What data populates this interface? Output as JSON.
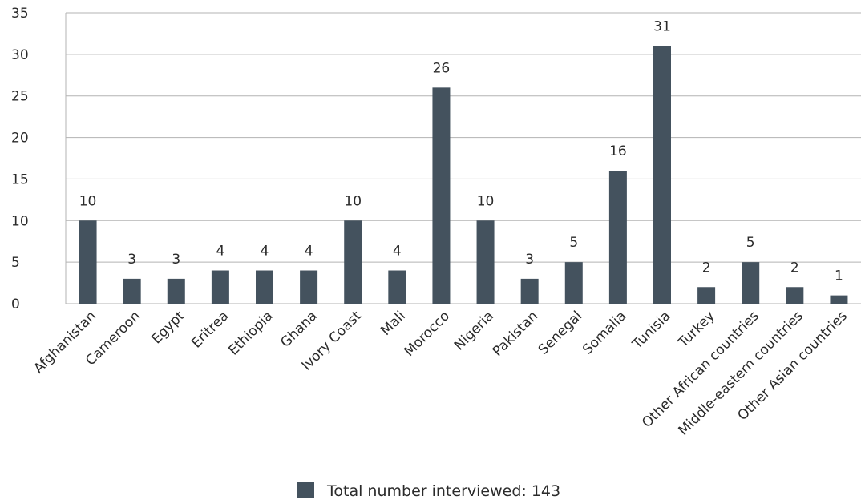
{
  "chart_data": {
    "type": "bar",
    "title": "",
    "xlabel": "",
    "ylabel": "",
    "categories": [
      "Afghanistan",
      "Cameroon",
      "Egypt",
      "Eritrea",
      "Ethiopia",
      "Ghana",
      "Ivory Coast",
      "Mali",
      "Morocco",
      "Nigeria",
      "Pakistan",
      "Senegal",
      "Somalia",
      "Tunisia",
      "Turkey",
      "Other African countries",
      "Middle-eastern countries",
      "Other Asian countries"
    ],
    "series": [
      {
        "name": "Total number interviewed: 143",
        "values": [
          10,
          3,
          3,
          4,
          4,
          4,
          10,
          4,
          26,
          10,
          3,
          5,
          16,
          31,
          2,
          5,
          2,
          1
        ]
      }
    ],
    "ylim": [
      0,
      35
    ],
    "yticks": [
      0,
      5,
      10,
      15,
      20,
      25,
      30,
      35
    ],
    "grid": true,
    "legend_position": "bottom",
    "bar_color": "#44525e",
    "grid_color": "#b3b3b3"
  }
}
